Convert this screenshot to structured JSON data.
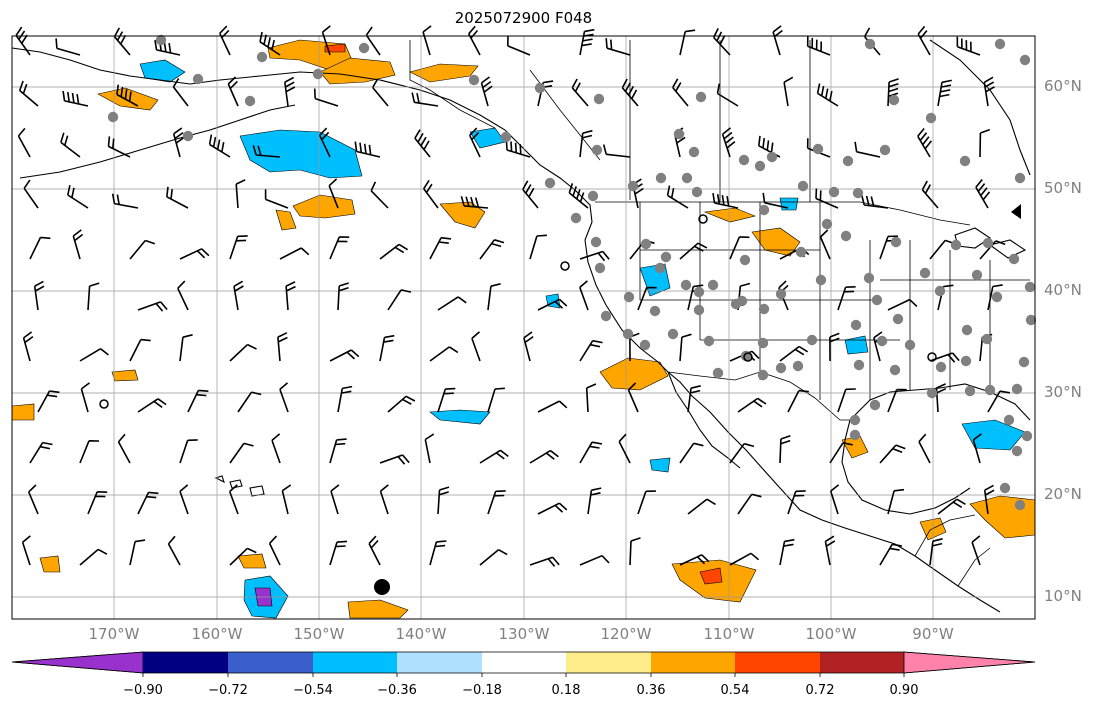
{
  "title": "2025072900 F048",
  "latitude_labels": [
    "60°N",
    "50°N",
    "40°N",
    "30°N",
    "20°N",
    "10°N"
  ],
  "longitude_labels": [
    "170°W",
    "160°W",
    "150°W",
    "140°W",
    "130°W",
    "120°W",
    "110°W",
    "100°W",
    "90°W"
  ],
  "colorbar": {
    "labels": [
      "−0.90",
      "−0.72",
      "−0.54",
      "−0.36",
      "−0.18",
      "0.18",
      "0.36",
      "0.54",
      "0.72",
      "0.90"
    ],
    "colors": [
      "#9932cc",
      "#000080",
      "#3a5fcd",
      "#00bfff",
      "#b0e2ff",
      "#ffffff",
      "#ffec8b",
      "#ffa500",
      "#ff4500",
      "#b22222",
      "#ff82ab"
    ]
  },
  "map_features": [
    "coastlines",
    "country-borders",
    "state-borders",
    "lat-lon-grid",
    "wind-barbs",
    "station-markers",
    "filled-contours"
  ]
}
